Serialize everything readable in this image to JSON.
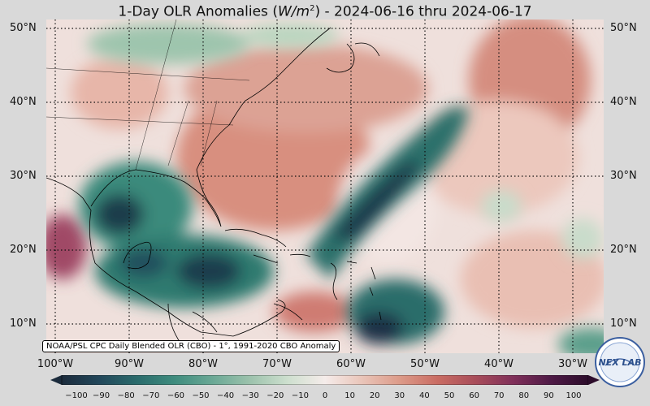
{
  "title": {
    "prefix": "1-Day OLR Anomalies (",
    "unit_base": "W/m",
    "unit_exp": "2",
    "suffix": ") - 2024-06-16 thru 2024-06-17"
  },
  "lat_labels": [
    "50°N",
    "40°N",
    "30°N",
    "20°N",
    "10°N"
  ],
  "lon_labels": [
    "100°W",
    "90°W",
    "80°W",
    "70°W",
    "60°W",
    "50°W",
    "40°W",
    "30°W"
  ],
  "source_note": "NOAA/PSL CPC Daily Blended OLR (CBO) - 1°, 1991-2020 CBO Anomaly",
  "colorbar": {
    "ticks": [
      "−100",
      "−90",
      "−80",
      "−70",
      "−60",
      "−50",
      "−40",
      "−30",
      "−20",
      "−10",
      "0",
      "10",
      "20",
      "30",
      "40",
      "50",
      "60",
      "70",
      "80",
      "90",
      "100"
    ],
    "colors": [
      "#1b2b3c",
      "#22475a",
      "#2a6b6c",
      "#3f8c7e",
      "#6aa895",
      "#9cc2ac",
      "#cddfce",
      "#f5ecea",
      "#e9c4b8",
      "#dc9a88",
      "#c96c63",
      "#a84d5a",
      "#80305a",
      "#4f1a46",
      "#2c0c2a"
    ]
  },
  "logo": {
    "text": "NEX LAB",
    "name": "nexlab-logo"
  },
  "palette": {
    "neg_strong": "#1b2b3c",
    "neg_mid": "#2f7a72",
    "neutral": "#f5ecea",
    "pos_mid": "#d9907f",
    "pos_strong": "#a84d5a"
  }
}
